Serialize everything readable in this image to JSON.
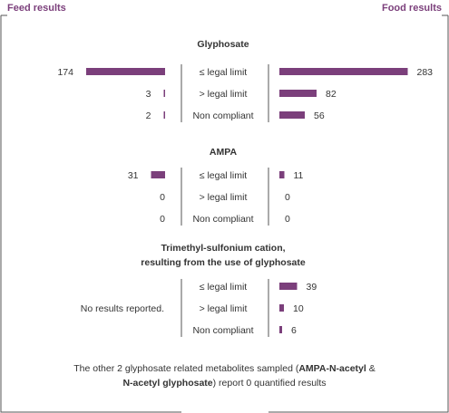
{
  "headers": {
    "feed": "Feed results",
    "food": "Food results"
  },
  "colors": {
    "bar": "#7b3f7b",
    "frame": "#555555",
    "text": "#333333"
  },
  "chart_data": {
    "type": "bar",
    "orientation": "horizontal-diverging",
    "categories": [
      "≤ legal limit",
      "> legal limit",
      "Non compliant"
    ],
    "groups": [
      {
        "title": "Glyphosate",
        "feed": [
          174,
          3,
          2
        ],
        "food": [
          283,
          82,
          56
        ],
        "feed_note": ""
      },
      {
        "title": "AMPA",
        "feed": [
          31,
          0,
          0
        ],
        "food": [
          11,
          0,
          0
        ],
        "feed_note": ""
      },
      {
        "title": "Trimethyl-sulfonium cation,",
        "title_line2": "resulting from the use of glyphosate",
        "feed": null,
        "food": [
          39,
          10,
          6
        ],
        "feed_note": "No results reported."
      }
    ]
  },
  "footnote": {
    "part1": "The other 2 glyphosate related metabolites sampled (",
    "bold1": "AMPA-N-acetyl",
    "part2": " &",
    "bold2": "N-acetyl glyphosate",
    "part3": ") report 0 quantified results"
  }
}
